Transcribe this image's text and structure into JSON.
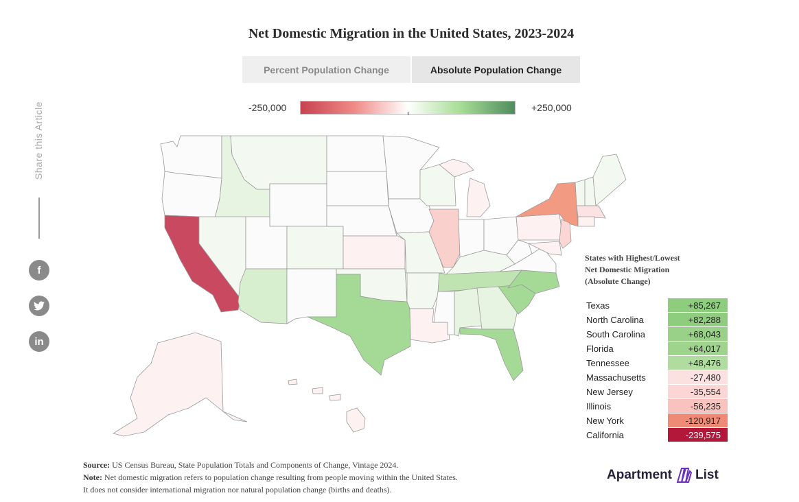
{
  "title": "Net Domestic Migration in the United States, 2023-2024",
  "tabs": [
    {
      "label": "Percent Population Change",
      "active": false
    },
    {
      "label": "Absolute Population Change",
      "active": true
    }
  ],
  "legend": {
    "min_label": "-250,000",
    "max_label": "+250,000",
    "colors": [
      "#c7424f",
      "#ef8a86",
      "#ffffff",
      "#a6dc94",
      "#4f8c5e"
    ]
  },
  "share": {
    "label": "Share this Article",
    "icons": [
      "facebook-icon",
      "twitter-icon",
      "linkedin-icon"
    ],
    "facebook_glyph": "f",
    "twitter_glyph": "🐦",
    "linkedin_glyph": "in"
  },
  "table": {
    "heading_line1": "States with Highest/Lowest",
    "heading_line2": "Net Domestic Migration",
    "heading_line3": "(Absolute Change)",
    "rows": [
      {
        "state": "Texas",
        "value": "+85,267",
        "color": "#8fcd7e"
      },
      {
        "state": "North Carolina",
        "value": "+82,288",
        "color": "#8fcd7e"
      },
      {
        "state": "South Carolina",
        "value": "+68,043",
        "color": "#98d187"
      },
      {
        "state": "Florida",
        "value": "+64,017",
        "color": "#9ed48c"
      },
      {
        "state": "Tennessee",
        "value": "+48,476",
        "color": "#b0dca0"
      },
      {
        "state": "Massachusetts",
        "value": "-27,480",
        "color": "#fbe1e0"
      },
      {
        "state": "New Jersey",
        "value": "-35,554",
        "color": "#fbd6d4"
      },
      {
        "state": "Illinois",
        "value": "-56,235",
        "color": "#f9c2be"
      },
      {
        "state": "New York",
        "value": "-120,917",
        "color": "#ef8a77"
      },
      {
        "state": "California",
        "value": "-239,575",
        "color": "#b3183a"
      }
    ]
  },
  "footer": {
    "source_label": "Source:",
    "source_text": "US Census Bureau, State Population Totals and Components of Change, Vintage 2024.",
    "note_label": "Note:",
    "note_text": "Net domestic migration refers to population change resulting from people moving within the United States.",
    "note_text2": "It does not consider international migration nor natural population change (births and deaths)."
  },
  "logo": {
    "left": "Apartment",
    "right": "List"
  },
  "map_colors": {
    "california": "#c94a60",
    "new_york": "#f39a82",
    "illinois": "#fad0cd",
    "texas": "#a5d996",
    "florida": "#a5d996",
    "carolinas": "#a5d996",
    "tennessee": "#bfe3b1",
    "light_green": "#e7f4e2",
    "pale_green": "#f3f9f0",
    "neutral": "#fbfbfb",
    "pale_pink": "#fdf1f1",
    "light_pink": "#fbe3e3"
  }
}
